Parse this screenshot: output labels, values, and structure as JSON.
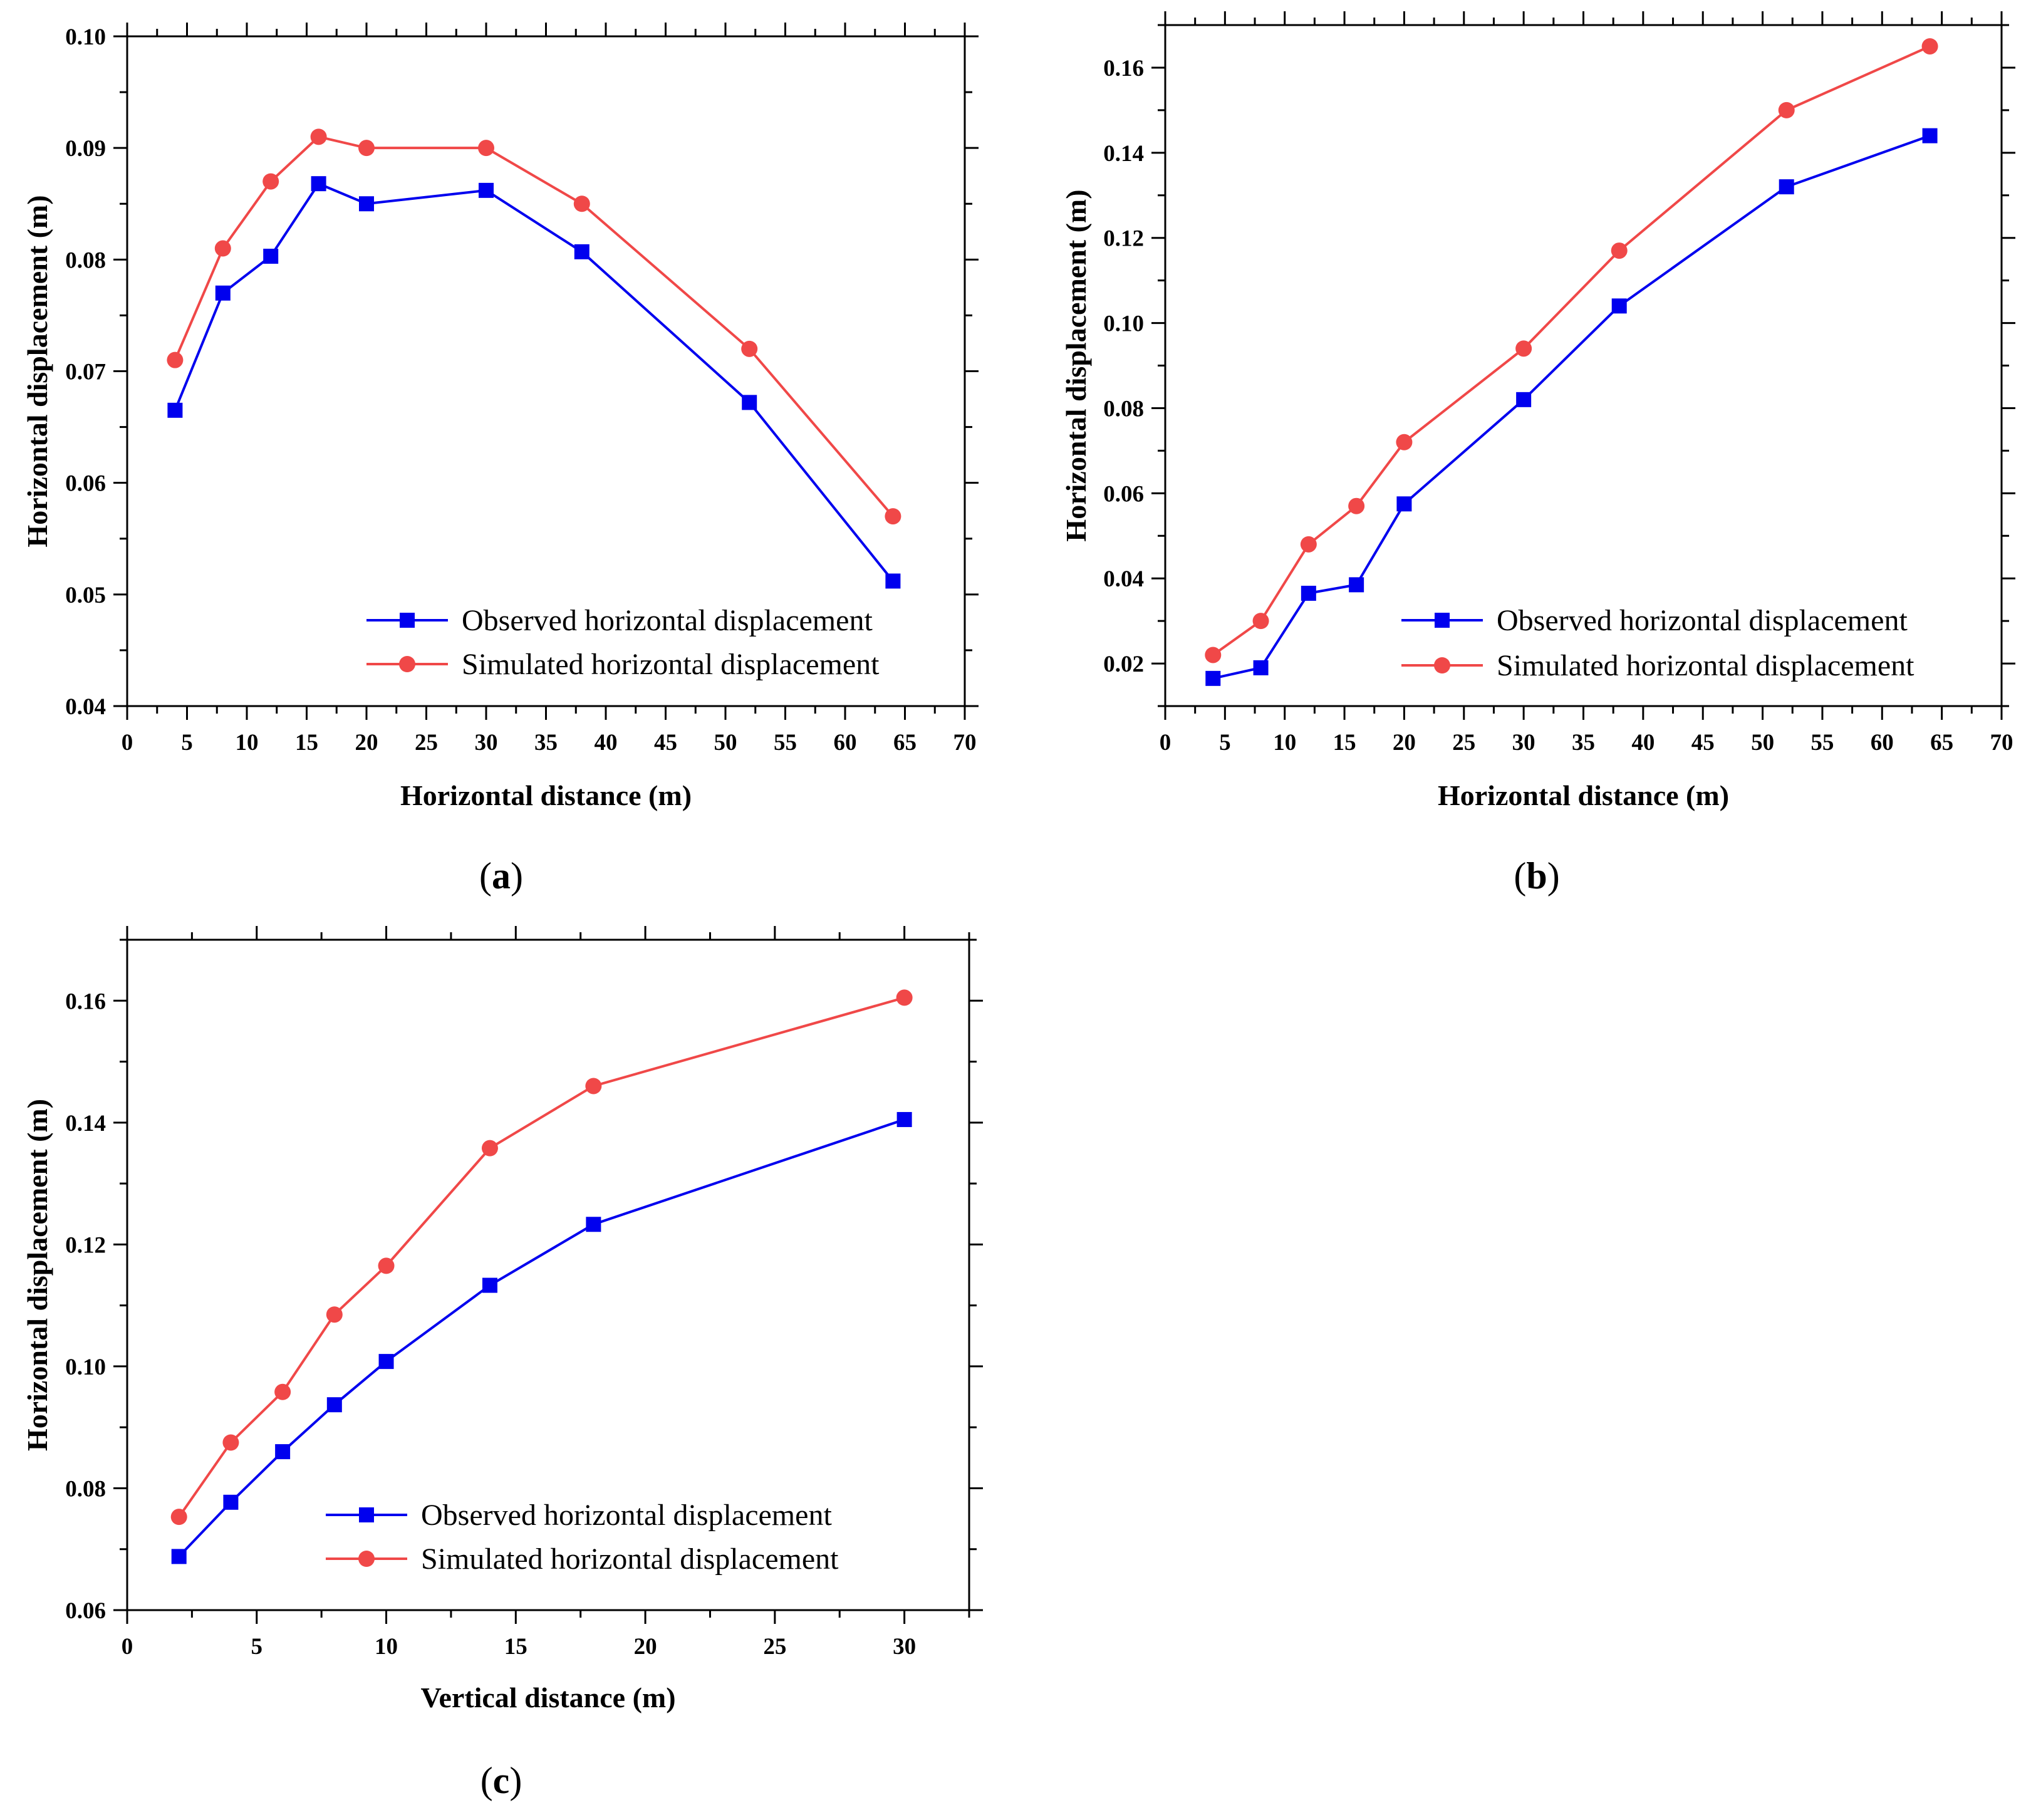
{
  "colors": {
    "observed": "#0000ee",
    "simulated": "#f04848",
    "axis": "#000000"
  },
  "chart_data": [
    {
      "type": "line",
      "panel": "a",
      "xlabel": "Horizontal distance (m)",
      "ylabel": "Horizontal displacement (m)",
      "xlim": [
        0,
        70
      ],
      "ylim": [
        0.04,
        0.1
      ],
      "xticks": [
        0,
        5,
        10,
        15,
        20,
        25,
        30,
        35,
        40,
        45,
        50,
        55,
        60,
        65,
        70
      ],
      "yticks": [
        0.04,
        0.05,
        0.06,
        0.07,
        0.08,
        0.09,
        0.1
      ],
      "ytick_labels": [
        "0.04",
        "0.05",
        "0.06",
        "0.07",
        "0.08",
        "0.09",
        "0.10"
      ],
      "legend_position": "bottom-right",
      "series": [
        {
          "name": "Observed horizontal displacement",
          "marker": "square",
          "x": [
            4,
            8,
            12,
            16,
            20,
            30,
            38,
            52,
            64
          ],
          "values": [
            0.0665,
            0.077,
            0.0803,
            0.0868,
            0.085,
            0.0862,
            0.0807,
            0.0672,
            0.0512
          ]
        },
        {
          "name": "Simulated horizontal displacement",
          "marker": "circle",
          "x": [
            4,
            8,
            12,
            16,
            20,
            30,
            38,
            52,
            64
          ],
          "values": [
            0.071,
            0.081,
            0.087,
            0.091,
            0.09,
            0.09,
            0.085,
            0.072,
            0.057
          ]
        }
      ]
    },
    {
      "type": "line",
      "panel": "b",
      "xlabel": "Horizontal distance (m)",
      "ylabel": "Horizontal displacement (m)",
      "xlim": [
        0,
        70
      ],
      "ylim": [
        0.01,
        0.17
      ],
      "xticks": [
        0,
        5,
        10,
        15,
        20,
        25,
        30,
        35,
        40,
        45,
        50,
        55,
        60,
        65,
        70
      ],
      "yticks": [
        0.02,
        0.04,
        0.06,
        0.08,
        0.1,
        0.12,
        0.14,
        0.16
      ],
      "ytick_labels": [
        "0.02",
        "0.04",
        "0.06",
        "0.08",
        "0.10",
        "0.12",
        "0.14",
        "0.16"
      ],
      "legend_position": "bottom-right",
      "series": [
        {
          "name": "Observed horizontal displacement",
          "marker": "square",
          "x": [
            4,
            8,
            12,
            16,
            20,
            30,
            38,
            52,
            64
          ],
          "values": [
            0.0165,
            0.019,
            0.0365,
            0.0385,
            0.0575,
            0.082,
            0.104,
            0.132,
            0.144
          ]
        },
        {
          "name": "Simulated horizontal displacement",
          "marker": "circle",
          "x": [
            4,
            8,
            12,
            16,
            20,
            30,
            38,
            52,
            64
          ],
          "values": [
            0.022,
            0.03,
            0.048,
            0.057,
            0.072,
            0.094,
            0.117,
            0.15,
            0.165
          ]
        }
      ]
    },
    {
      "type": "line",
      "panel": "c",
      "xlabel": "Vertical distance (m)",
      "ylabel": "Horizontal displacement (m)",
      "xlim": [
        0,
        32.5
      ],
      "ylim": [
        0.06,
        0.17
      ],
      "xticks": [
        0,
        5,
        10,
        15,
        20,
        25,
        30
      ],
      "yticks": [
        0.06,
        0.08,
        0.1,
        0.12,
        0.14,
        0.16
      ],
      "ytick_labels": [
        "0.06",
        "0.08",
        "0.10",
        "0.12",
        "0.14",
        "0.16"
      ],
      "legend_position": "bottom-right",
      "series": [
        {
          "name": "Observed horizontal displacement",
          "marker": "square",
          "x": [
            2,
            4,
            6,
            8,
            10,
            14,
            18,
            30
          ],
          "values": [
            0.0688,
            0.0777,
            0.086,
            0.0937,
            0.1008,
            0.1133,
            0.1233,
            0.1405
          ]
        },
        {
          "name": "Simulated horizontal displacement",
          "marker": "circle",
          "x": [
            2,
            4,
            6,
            8,
            10,
            14,
            18,
            30
          ],
          "values": [
            0.0753,
            0.0875,
            0.0958,
            0.1085,
            0.1165,
            0.1358,
            0.146,
            0.1605
          ]
        }
      ]
    }
  ],
  "captions": [
    {
      "open": "(",
      "letter": "a",
      "close": ")"
    },
    {
      "open": "(",
      "letter": "b",
      "close": ")"
    },
    {
      "open": "(",
      "letter": "c",
      "close": ")"
    }
  ]
}
